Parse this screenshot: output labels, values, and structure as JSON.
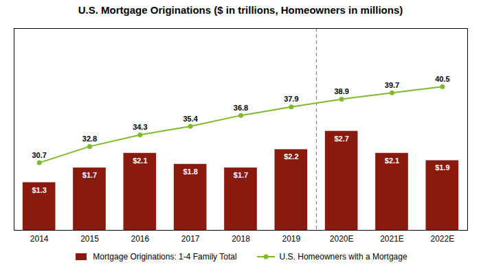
{
  "chart_data": {
    "type": "bar",
    "title": "U.S. Mortgage Originations ($ in trillions, Homeowners in millions)",
    "categories": [
      "2014",
      "2015",
      "2016",
      "2017",
      "2018",
      "2019",
      "2020E",
      "2021E",
      "2022E"
    ],
    "series": [
      {
        "name": "Mortgage Originations: 1-4 Family Total",
        "type": "bar",
        "color": "#8B1A0E",
        "values": [
          1.3,
          1.7,
          2.1,
          1.8,
          1.7,
          2.2,
          2.7,
          2.1,
          1.9
        ],
        "value_labels": [
          "$1.3",
          "$1.7",
          "$2.1",
          "$1.8",
          "$1.7",
          "$2.2",
          "$2.7",
          "$2.1",
          "$1.9"
        ]
      },
      {
        "name": "U.S. Homeowners with a Mortgage",
        "type": "line",
        "color": "#7DB928",
        "marker": "circle",
        "axis": "y2",
        "values": [
          30.7,
          32.8,
          34.3,
          35.4,
          36.8,
          37.9,
          38.9,
          39.7,
          40.5
        ]
      }
    ],
    "ylim": [
      0,
      5.5
    ],
    "y2lim": [
      22,
      48
    ],
    "data_labels": true,
    "tick_labels": "x",
    "legend": "bottom",
    "annotations": [
      {
        "type": "vline",
        "between": [
          "2019",
          "2020E"
        ],
        "line_style": "dashed",
        "color": "gray"
      }
    ]
  }
}
